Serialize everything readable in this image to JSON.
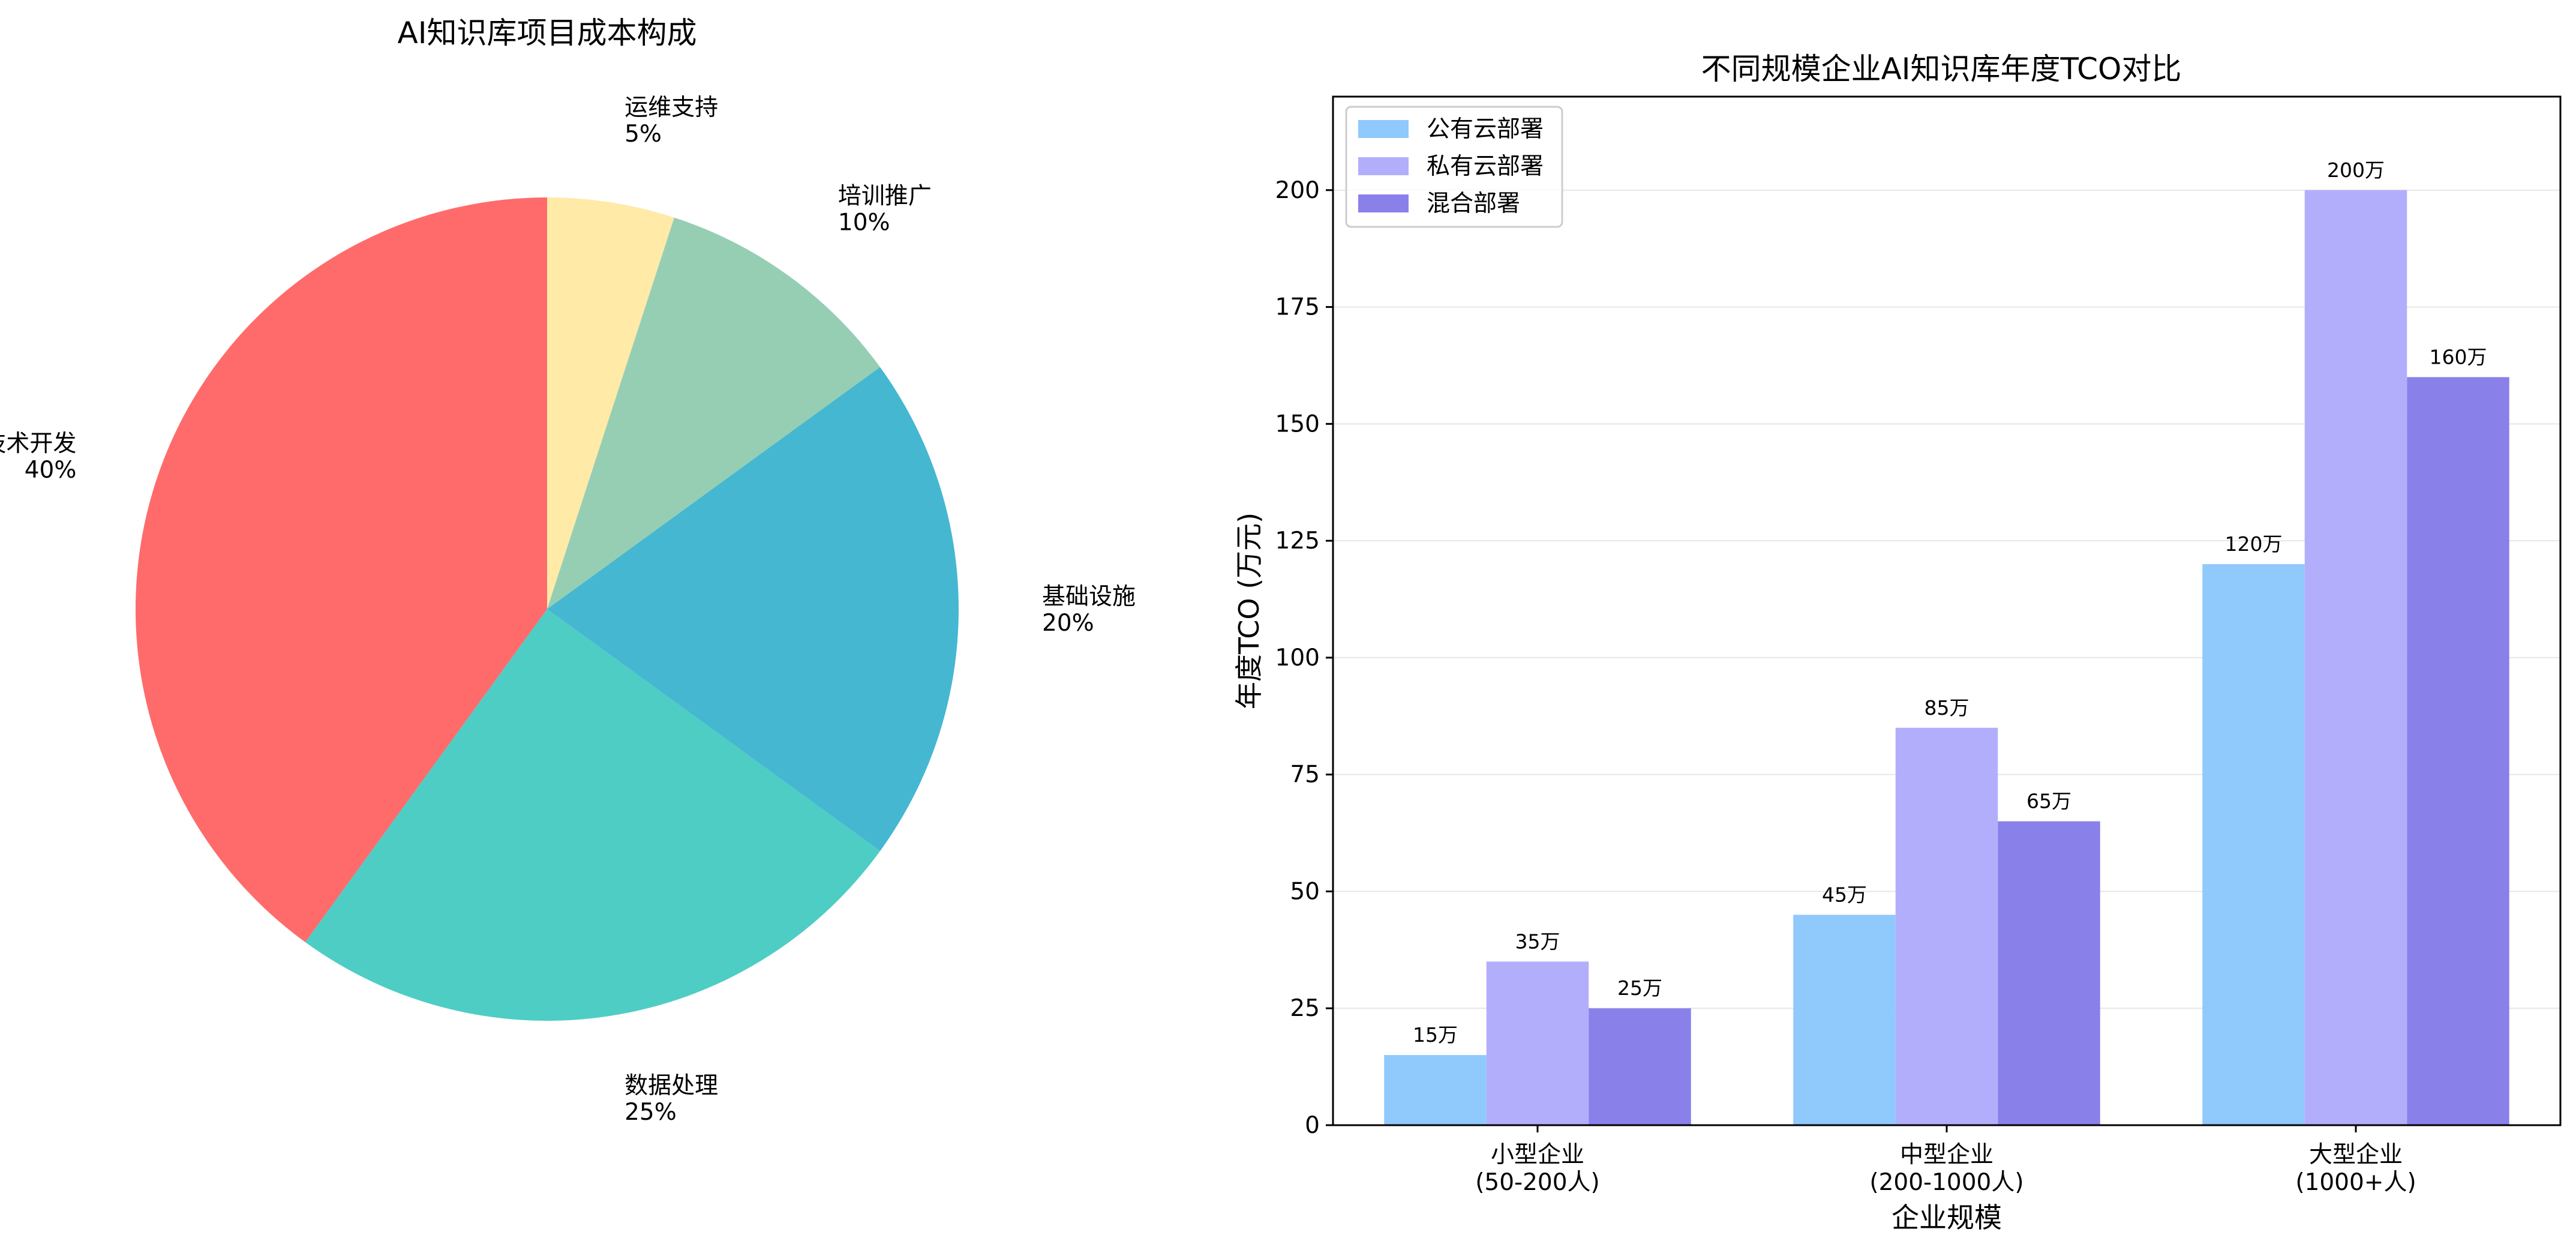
{
  "chart_data": [
    {
      "type": "pie",
      "title": "AI知识库项目成本构成",
      "slices": [
        {
          "label": "运维支持",
          "value": 5,
          "pct": "5%",
          "color": "#FFEAA7"
        },
        {
          "label": "培训推广",
          "value": 10,
          "pct": "10%",
          "color": "#96CEB4"
        },
        {
          "label": "基础设施",
          "value": 20,
          "pct": "20%",
          "color": "#45B7D1"
        },
        {
          "label": "数据处理",
          "value": 25,
          "pct": "25%",
          "color": "#4ECDC4"
        },
        {
          "label": "技术开发",
          "value": 40,
          "pct": "40%",
          "color": "#FF6B6B"
        }
      ],
      "start_angle": "12 o'clock",
      "direction": "clockwise"
    },
    {
      "type": "bar",
      "title": "不同规模企业AI知识库年度TCO对比",
      "xlabel": "企业规模",
      "ylabel": "年度TCO (万元)",
      "ylim": [
        0,
        220
      ],
      "yticks": [
        0,
        25,
        50,
        75,
        100,
        125,
        150,
        175,
        200
      ],
      "grid": "horizontal",
      "legend_position": "top-left",
      "categories": [
        [
          "小型企业",
          "(50-200人)"
        ],
        [
          "中型企业",
          "(200-1000人)"
        ],
        [
          "大型企业",
          "(1000+人)"
        ]
      ],
      "series": [
        {
          "name": "公有云部署",
          "color": "#90C9FC",
          "values": [
            15,
            45,
            120
          ],
          "labels": [
            "15万",
            "45万",
            "120万"
          ]
        },
        {
          "name": "私有云部署",
          "color": "#B3AEFC",
          "values": [
            35,
            85,
            200
          ],
          "labels": [
            "35万",
            "85万",
            "200万"
          ]
        },
        {
          "name": "混合部署",
          "color": "#8A80EA",
          "values": [
            25,
            65,
            160
          ],
          "labels": [
            "25万",
            "65万",
            "160万"
          ]
        }
      ]
    }
  ]
}
